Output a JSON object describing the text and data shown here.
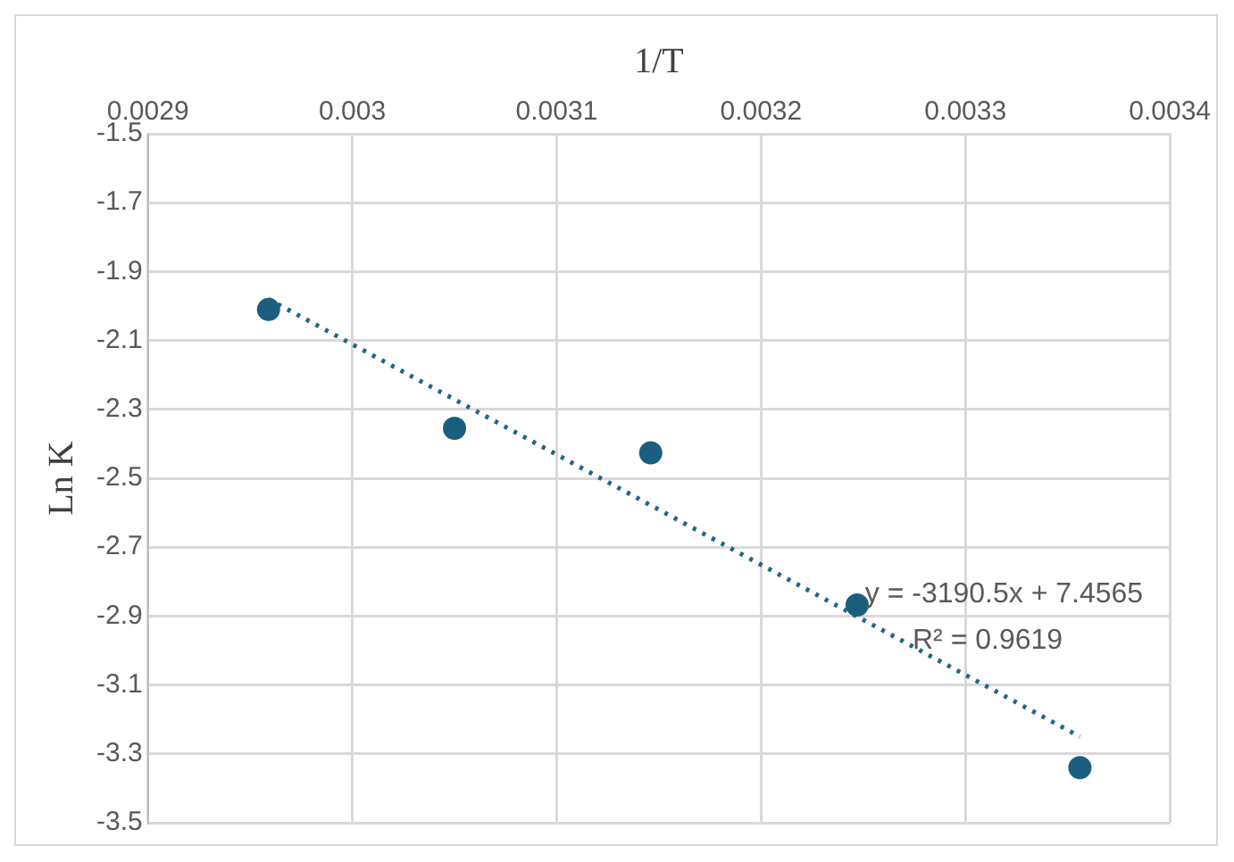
{
  "chart_data": {
    "type": "scatter",
    "xlabel": "1/T",
    "ylabel": "Ln K",
    "x": [
      0.002959,
      0.00305,
      0.003146,
      0.003247,
      0.003356
    ],
    "series": [
      {
        "type": "scatter",
        "color": "#1b5f7e",
        "values": [
          -2.01,
          -2.355,
          -2.426,
          -2.868,
          -3.34
        ],
        "marker": "circle"
      },
      {
        "type": "line",
        "color": "#1f6787",
        "x": [
          0.002959,
          0.003356
        ],
        "values": [
          -1.98,
          -3.25
        ],
        "line_style": "dotted",
        "marker": "none"
      }
    ],
    "xlim": [
      0.0029,
      0.0034
    ],
    "xticks": [
      0.0029,
      0.003,
      0.0031,
      0.0032,
      0.0033,
      0.0034
    ],
    "ylim": [
      -3.5,
      -1.5
    ],
    "yticks": [
      -1.5,
      -1.7,
      -1.9,
      -2.1,
      -2.3,
      -2.5,
      -2.7,
      -2.9,
      -3.1,
      -3.3,
      -3.5
    ],
    "grid": true,
    "legend": false,
    "annotations": [
      "y = -3190.5x + 7.4565",
      "R² = 0.9619"
    ]
  }
}
